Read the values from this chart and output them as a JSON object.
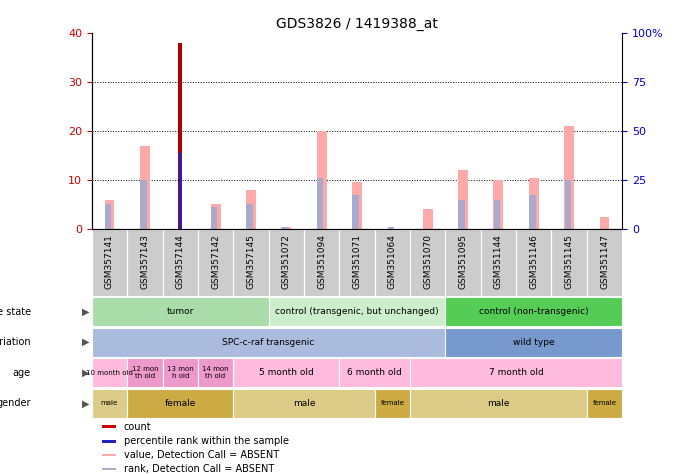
{
  "title": "GDS3826 / 1419388_at",
  "samples": [
    "GSM357141",
    "GSM357143",
    "GSM357144",
    "GSM357142",
    "GSM357145",
    "GSM351072",
    "GSM351094",
    "GSM351071",
    "GSM351064",
    "GSM351070",
    "GSM351095",
    "GSM351144",
    "GSM351146",
    "GSM351145",
    "GSM351147"
  ],
  "count_values": [
    0,
    0,
    38,
    0,
    0,
    0,
    0,
    0,
    0,
    0,
    0,
    0,
    0,
    0,
    0
  ],
  "percentile_values": [
    0,
    0,
    15.5,
    0,
    0,
    0,
    0,
    0,
    0,
    0,
    0,
    0,
    0,
    0,
    0
  ],
  "absent_value": [
    6,
    17,
    0,
    5,
    8,
    0.5,
    20,
    9.5,
    0,
    4,
    12,
    10,
    10.5,
    21,
    2.5
  ],
  "absent_rank": [
    5,
    10,
    0,
    4.5,
    5,
    0.5,
    10.5,
    7,
    0.5,
    0,
    6,
    6,
    7,
    10,
    0
  ],
  "ylim_left": [
    0,
    40
  ],
  "ylim_right": [
    0,
    100
  ],
  "yticks_left": [
    0,
    10,
    20,
    30,
    40
  ],
  "yticks_right": [
    0,
    25,
    50,
    75,
    100
  ],
  "ytick_labels_right": [
    "0",
    "25",
    "50",
    "75",
    "100%"
  ],
  "disease_state_groups": [
    {
      "label": "tumor",
      "start": 0,
      "end": 5,
      "color": "#aaddaa"
    },
    {
      "label": "control (transgenic, but unchanged)",
      "start": 5,
      "end": 10,
      "color": "#cceecc"
    },
    {
      "label": "control (non-transgenic)",
      "start": 10,
      "end": 15,
      "color": "#55cc55"
    }
  ],
  "genotype_groups": [
    {
      "label": "SPC-c-raf transgenic",
      "start": 0,
      "end": 10,
      "color": "#aabbdd"
    },
    {
      "label": "wild type",
      "start": 10,
      "end": 15,
      "color": "#7799cc"
    }
  ],
  "age_groups": [
    {
      "label": "10 month old",
      "start": 0,
      "end": 1,
      "color": "#ffbbdd"
    },
    {
      "label": "12 mon\nth old",
      "start": 1,
      "end": 2,
      "color": "#ee99cc"
    },
    {
      "label": "13 mon\nh old",
      "start": 2,
      "end": 3,
      "color": "#ee99cc"
    },
    {
      "label": "14 mon\nth old",
      "start": 3,
      "end": 4,
      "color": "#ee99cc"
    },
    {
      "label": "5 month old",
      "start": 4,
      "end": 7,
      "color": "#ffbbdd"
    },
    {
      "label": "6 month old",
      "start": 7,
      "end": 9,
      "color": "#ffbbdd"
    },
    {
      "label": "7 month old",
      "start": 9,
      "end": 15,
      "color": "#ffbbdd"
    }
  ],
  "gender_groups": [
    {
      "label": "male",
      "start": 0,
      "end": 1,
      "color": "#ddcc88"
    },
    {
      "label": "female",
      "start": 1,
      "end": 4,
      "color": "#ccaa44"
    },
    {
      "label": "male",
      "start": 4,
      "end": 8,
      "color": "#ddcc88"
    },
    {
      "label": "female",
      "start": 8,
      "end": 9,
      "color": "#ccaa44"
    },
    {
      "label": "male",
      "start": 9,
      "end": 14,
      "color": "#ddcc88"
    },
    {
      "label": "female",
      "start": 14,
      "end": 15,
      "color": "#ccaa44"
    }
  ],
  "legend_items": [
    {
      "color": "#cc0000",
      "label": "count"
    },
    {
      "color": "#2222bb",
      "label": "percentile rank within the sample"
    },
    {
      "color": "#ffaaaa",
      "label": "value, Detection Call = ABSENT"
    },
    {
      "color": "#aaaacc",
      "label": "rank, Detection Call = ABSENT"
    }
  ],
  "pink_bar_color": "#ffaaaa",
  "blue_bar_color": "#aaaacc",
  "count_bar_color": "#aa0000",
  "pct_bar_color": "#2222bb",
  "fig_bg": "#ffffff",
  "plot_bg": "#ffffff",
  "label_band_bg": "#cccccc",
  "left_tick_color": "#cc0000",
  "right_tick_color": "#0000cc"
}
